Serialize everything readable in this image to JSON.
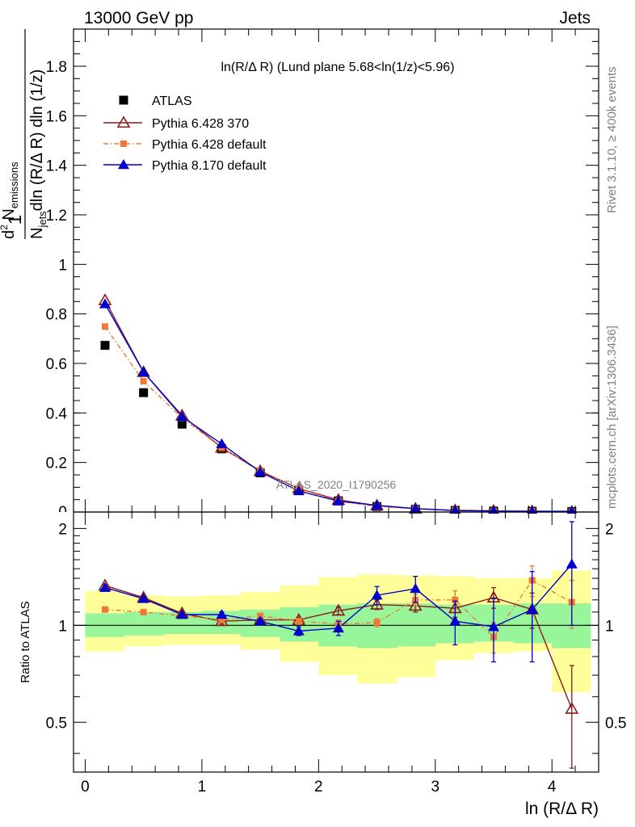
{
  "header": {
    "left": "13000 GeV pp",
    "right": "Jets"
  },
  "side_text": {
    "rivet": "Rivet 3.1.10, ≥ 400k events",
    "mcplots": "mcplots.cern.ch [arXiv:1306.3436]"
  },
  "watermark": "ATLAS_2020_I1790256",
  "chart_data": [
    {
      "type": "scatter",
      "title": "ln(R/Δ R) (Lund plane 5.68<ln(1/z)<5.96)",
      "ylabel": "1/N_jets d²N_emissions / dln(R/Δ R) dln(1/z)",
      "xlabel": "ln (R/Δ R)",
      "xlim": [
        -0.1,
        4.4
      ],
      "ylim": [
        0,
        1.95
      ],
      "yticks": [
        "0.2",
        "0.4",
        "0.6",
        "0.8",
        "1",
        "1.2",
        "1.4",
        "1.6",
        "1.8"
      ],
      "ytick_values": [
        0.2,
        0.4,
        0.6,
        0.8,
        1.0,
        1.2,
        1.4,
        1.6,
        1.8
      ],
      "bottom_tick_partial": "0",
      "legend_placement": "top-left",
      "x": [
        0.17,
        0.5,
        0.83,
        1.17,
        1.5,
        1.83,
        2.17,
        2.5,
        2.83,
        3.17,
        3.5,
        3.83,
        4.17
      ],
      "series": [
        {
          "name": "ATLAS",
          "marker": "square",
          "color": "#000000",
          "values": [
            0.673,
            0.482,
            0.355,
            0.255,
            0.158,
            0.088,
            0.045,
            0.022,
            0.011,
            0.006,
            0.004,
            0.003,
            0.002
          ]
        },
        {
          "name": "Pythia 6.428 370",
          "marker": "triangle-open",
          "color": "#8b1a1a",
          "values": [
            0.855,
            0.565,
            0.39,
            0.26,
            0.165,
            0.095,
            0.049,
            0.026,
            0.013,
            0.007,
            0.005,
            0.003,
            0.001
          ]
        },
        {
          "name": "Pythia 6.428 default",
          "marker": "square-small",
          "color": "#f07838",
          "values": [
            0.749,
            0.528,
            0.38,
            0.26,
            0.168,
            0.094,
            0.045,
            0.022,
            0.013,
            0.007,
            0.004,
            0.004,
            0.002
          ]
        },
        {
          "name": "Pythia 8.170 default",
          "marker": "triangle",
          "color": "#0000cc",
          "values": [
            0.84,
            0.565,
            0.385,
            0.275,
            0.162,
            0.085,
            0.044,
            0.027,
            0.014,
            0.006,
            0.004,
            0.003,
            0.003
          ]
        }
      ]
    },
    {
      "type": "scatter",
      "ylabel": "Ratio to ATLAS",
      "xlabel": "ln (R/Δ R)",
      "xlim": [
        -0.1,
        4.4
      ],
      "ylim": [
        0.35,
        2.25
      ],
      "yticks": [
        "0.5",
        "1",
        "2"
      ],
      "ytick_values": [
        0.5,
        1.0,
        2.0
      ],
      "xticks": [
        "0",
        "1",
        "2",
        "3",
        "4"
      ],
      "xtick_values": [
        0,
        1,
        2,
        3,
        4
      ],
      "reference_line": 1.0,
      "bands": {
        "bin_edges": [
          0.0,
          0.33,
          0.67,
          1.0,
          1.33,
          1.67,
          2.0,
          2.33,
          2.67,
          3.0,
          3.33,
          3.67,
          4.0,
          4.33
        ],
        "green_lower": [
          0.92,
          0.93,
          0.94,
          0.94,
          0.92,
          0.89,
          0.86,
          0.85,
          0.86,
          0.88,
          0.89,
          0.88,
          0.85
        ],
        "green_upper": [
          1.09,
          1.1,
          1.1,
          1.11,
          1.12,
          1.14,
          1.16,
          1.17,
          1.17,
          1.16,
          1.16,
          1.17,
          1.17
        ],
        "yellow_lower": [
          0.83,
          0.86,
          0.87,
          0.87,
          0.84,
          0.77,
          0.7,
          0.66,
          0.69,
          0.78,
          0.82,
          0.83,
          0.62
        ],
        "yellow_upper": [
          1.28,
          1.24,
          1.23,
          1.24,
          1.27,
          1.33,
          1.41,
          1.44,
          1.43,
          1.42,
          1.4,
          1.4,
          1.48
        ]
      },
      "x": [
        0.17,
        0.5,
        0.83,
        1.17,
        1.5,
        1.83,
        2.17,
        2.5,
        2.83,
        3.17,
        3.5,
        3.83,
        4.17
      ],
      "series": [
        {
          "name": "Pythia 6.428 370",
          "marker": "triangle-open",
          "color": "#8b1a1a",
          "line": "solid",
          "values": [
            1.33,
            1.22,
            1.09,
            1.03,
            1.04,
            1.04,
            1.11,
            1.16,
            1.15,
            1.13,
            1.22,
            1.12,
            0.55
          ],
          "err": [
            0.01,
            0.01,
            0.01,
            0.02,
            0.02,
            0.02,
            0.03,
            0.04,
            0.05,
            0.07,
            0.09,
            0.14,
            0.2
          ]
        },
        {
          "name": "Pythia 6.428 default",
          "marker": "square-small",
          "color": "#f07838",
          "line": "dashdot",
          "values": [
            1.12,
            1.1,
            1.07,
            1.04,
            1.07,
            1.03,
            1.01,
            1.02,
            1.2,
            1.2,
            0.92,
            1.38,
            1.18
          ],
          "err": [
            0.01,
            0.01,
            0.01,
            0.02,
            0.02,
            0.02,
            0.03,
            0.03,
            0.05,
            0.08,
            0.1,
            0.15,
            0.2
          ]
        },
        {
          "name": "Pythia 8.170 default",
          "marker": "triangle",
          "color": "#0000cc",
          "line": "solid",
          "values": [
            1.31,
            1.21,
            1.08,
            1.08,
            1.03,
            0.96,
            0.98,
            1.24,
            1.3,
            1.03,
            0.99,
            1.12,
            1.55
          ],
          "err": [
            0.01,
            0.01,
            0.01,
            0.02,
            0.02,
            0.03,
            0.05,
            0.08,
            0.12,
            0.16,
            0.22,
            0.35,
            0.55
          ]
        }
      ]
    }
  ]
}
